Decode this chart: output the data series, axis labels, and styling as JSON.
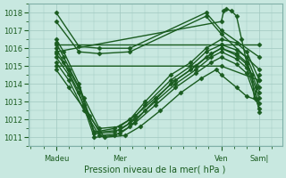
{
  "title": "Pression niveau de la mer( hPa )",
  "ylabel": "",
  "ylim": [
    1010.5,
    1018.5
  ],
  "yticks": [
    1011,
    1012,
    1013,
    1014,
    1015,
    1016,
    1017,
    1018
  ],
  "xlim": [
    0,
    5.0
  ],
  "xtick_positions": [
    0.55,
    1.8,
    3.8,
    4.55
  ],
  "xtick_labels": [
    "Madeu",
    "Mer",
    "Ven",
    "Sam|"
  ],
  "bg_color": "#c8e8e0",
  "grid_color": "#a0c8c0",
  "line_color": "#1a5c20",
  "marker": "D",
  "markersize": 2.5,
  "linewidth": 1.0,
  "series": [
    [
      0.55,
      1018.0,
      1.0,
      1016.1,
      1.4,
      1016.0,
      2.0,
      1016.0,
      3.5,
      1018.0,
      3.8,
      1017.0,
      4.55,
      1015.5
    ],
    [
      0.55,
      1017.5,
      1.0,
      1015.8,
      1.4,
      1015.7,
      2.0,
      1015.8,
      3.5,
      1017.8,
      3.8,
      1016.8,
      4.55,
      1014.8
    ],
    [
      0.55,
      1016.5,
      0.7,
      1015.8,
      1.0,
      1014.0,
      1.3,
      1011.3,
      1.7,
      1011.5,
      2.0,
      1012.0,
      2.3,
      1013.0,
      2.8,
      1014.5,
      3.2,
      1015.2,
      3.5,
      1016.0,
      3.8,
      1016.5,
      4.1,
      1016.3,
      4.3,
      1015.8,
      4.55,
      1014.2
    ],
    [
      0.55,
      1016.3,
      0.7,
      1015.5,
      1.0,
      1013.8,
      1.3,
      1011.2,
      1.7,
      1011.3,
      2.0,
      1011.8,
      2.3,
      1012.8,
      2.8,
      1014.2,
      3.2,
      1015.0,
      3.5,
      1015.8,
      3.8,
      1016.2,
      4.1,
      1015.9,
      4.3,
      1015.5,
      4.55,
      1013.8
    ],
    [
      0.55,
      1016.0,
      0.7,
      1015.2,
      1.0,
      1013.5,
      1.3,
      1011.0,
      1.7,
      1011.1,
      2.0,
      1011.6,
      2.3,
      1012.5,
      2.8,
      1014.0,
      3.2,
      1014.8,
      3.5,
      1015.5,
      3.8,
      1016.0,
      4.1,
      1015.7,
      4.3,
      1015.2,
      4.55,
      1013.5
    ],
    [
      0.55,
      1015.7,
      0.8,
      1014.8,
      1.1,
      1013.2,
      1.4,
      1011.5,
      1.8,
      1011.6,
      2.1,
      1012.2,
      2.5,
      1013.2,
      2.9,
      1014.2,
      3.3,
      1015.0,
      3.6,
      1015.7,
      3.8,
      1016.0,
      4.1,
      1015.6,
      4.3,
      1015.1,
      4.55,
      1013.2
    ],
    [
      0.55,
      1015.5,
      0.8,
      1014.5,
      1.1,
      1012.8,
      1.4,
      1011.3,
      1.8,
      1011.4,
      2.1,
      1012.0,
      2.5,
      1013.0,
      2.9,
      1014.0,
      3.3,
      1014.8,
      3.6,
      1015.5,
      3.8,
      1015.8,
      4.1,
      1015.4,
      4.3,
      1014.9,
      4.55,
      1012.9
    ],
    [
      0.55,
      1015.2,
      0.8,
      1014.2,
      1.1,
      1012.5,
      1.4,
      1011.1,
      1.8,
      1011.2,
      2.1,
      1011.8,
      2.5,
      1012.8,
      2.9,
      1013.8,
      3.3,
      1014.6,
      3.6,
      1015.2,
      3.8,
      1015.5,
      4.1,
      1015.1,
      4.3,
      1014.6,
      4.55,
      1012.6
    ],
    [
      0.55,
      1014.8,
      0.8,
      1013.8,
      1.2,
      1012.2,
      1.5,
      1011.0,
      1.9,
      1011.1,
      2.2,
      1011.6,
      2.6,
      1012.5,
      3.0,
      1013.5,
      3.4,
      1014.3,
      3.7,
      1014.8,
      3.8,
      1014.5,
      4.1,
      1013.8,
      4.3,
      1013.3,
      4.5,
      1013.1,
      4.55,
      1012.4
    ],
    [
      0.55,
      1016.2,
      3.8,
      1016.2,
      4.55,
      1016.2
    ],
    [
      0.55,
      1015.0,
      3.8,
      1015.0,
      4.55,
      1014.2
    ],
    [
      0.55,
      1015.8,
      3.8,
      1017.5,
      3.85,
      1018.1,
      3.9,
      1018.2,
      4.0,
      1018.1,
      4.1,
      1017.8,
      4.2,
      1016.5,
      4.3,
      1015.2,
      4.4,
      1014.5,
      4.45,
      1013.2,
      4.5,
      1013.8,
      4.55,
      1014.5
    ]
  ]
}
